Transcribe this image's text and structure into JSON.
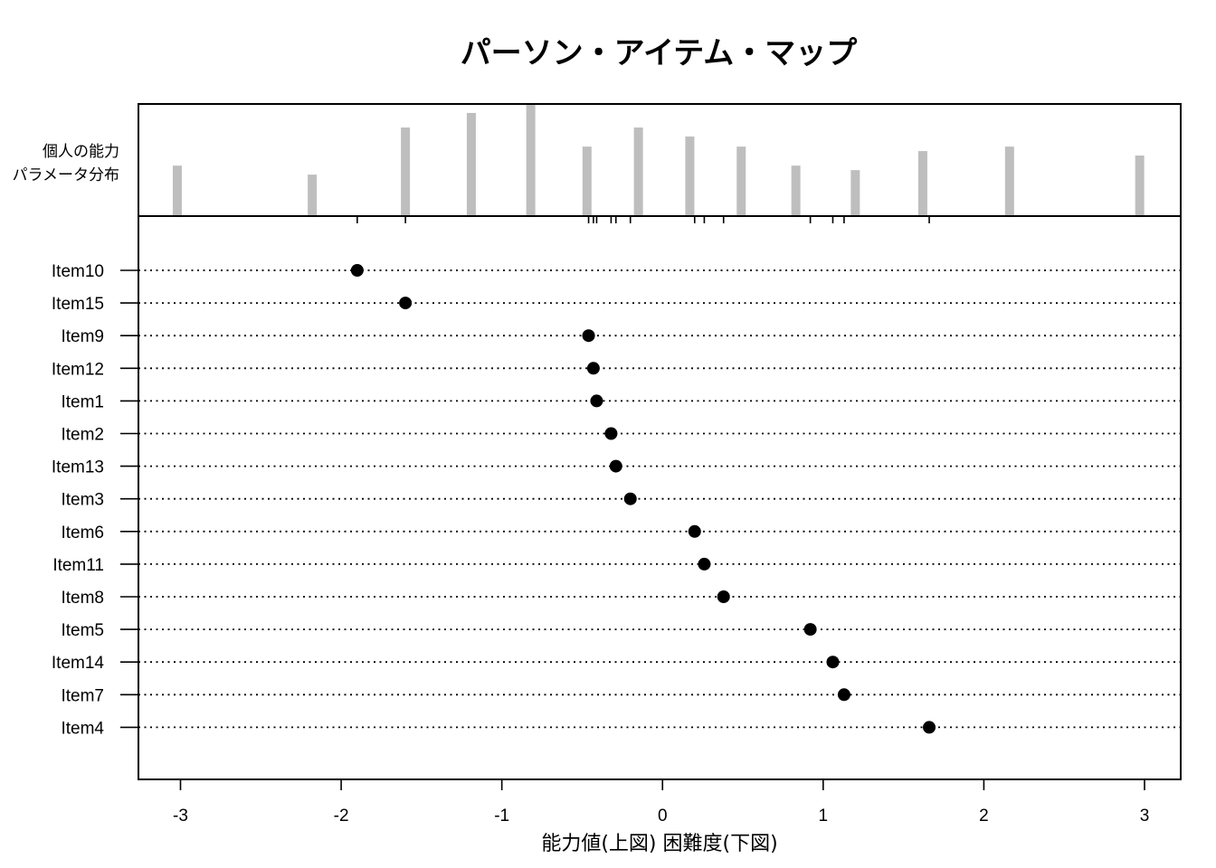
{
  "chart_data": {
    "type": "scatter",
    "title": "パーソン・アイテム・マップ",
    "xlabel": "能力値(上図)  困難度(下図)",
    "dist_label_lines": [
      "個人の能力",
      "パラメータ分布"
    ],
    "xlim": [
      -3.25,
      3.25
    ],
    "x_ticks": [
      -3,
      -2,
      -1,
      0,
      1,
      2,
      3
    ],
    "x_tick_labels": [
      "-3",
      "-2",
      "-1",
      "0",
      "1",
      "2",
      "3"
    ],
    "person_distribution": {
      "type": "bar",
      "x": [
        -3.02,
        -2.18,
        -1.6,
        -1.19,
        -0.82,
        -0.47,
        -0.15,
        0.17,
        0.49,
        0.83,
        1.2,
        1.62,
        2.16,
        2.97
      ],
      "heights": [
        0.45,
        0.37,
        0.79,
        0.92,
        1.0,
        0.62,
        0.79,
        0.71,
        0.62,
        0.45,
        0.41,
        0.58,
        0.62,
        0.54
      ]
    },
    "items": {
      "labels": [
        "Item10",
        "Item15",
        "Item9",
        "Item12",
        "Item1",
        "Item2",
        "Item13",
        "Item3",
        "Item6",
        "Item11",
        "Item8",
        "Item5",
        "Item14",
        "Item7",
        "Item4"
      ],
      "values": [
        -1.9,
        -1.6,
        -0.46,
        -0.43,
        -0.41,
        -0.32,
        -0.29,
        -0.2,
        0.2,
        0.26,
        0.38,
        0.92,
        1.06,
        1.13,
        1.66
      ]
    },
    "grid": false
  },
  "colors": {
    "bar": "#bebebe",
    "point": "#000000",
    "axis": "#000000"
  }
}
